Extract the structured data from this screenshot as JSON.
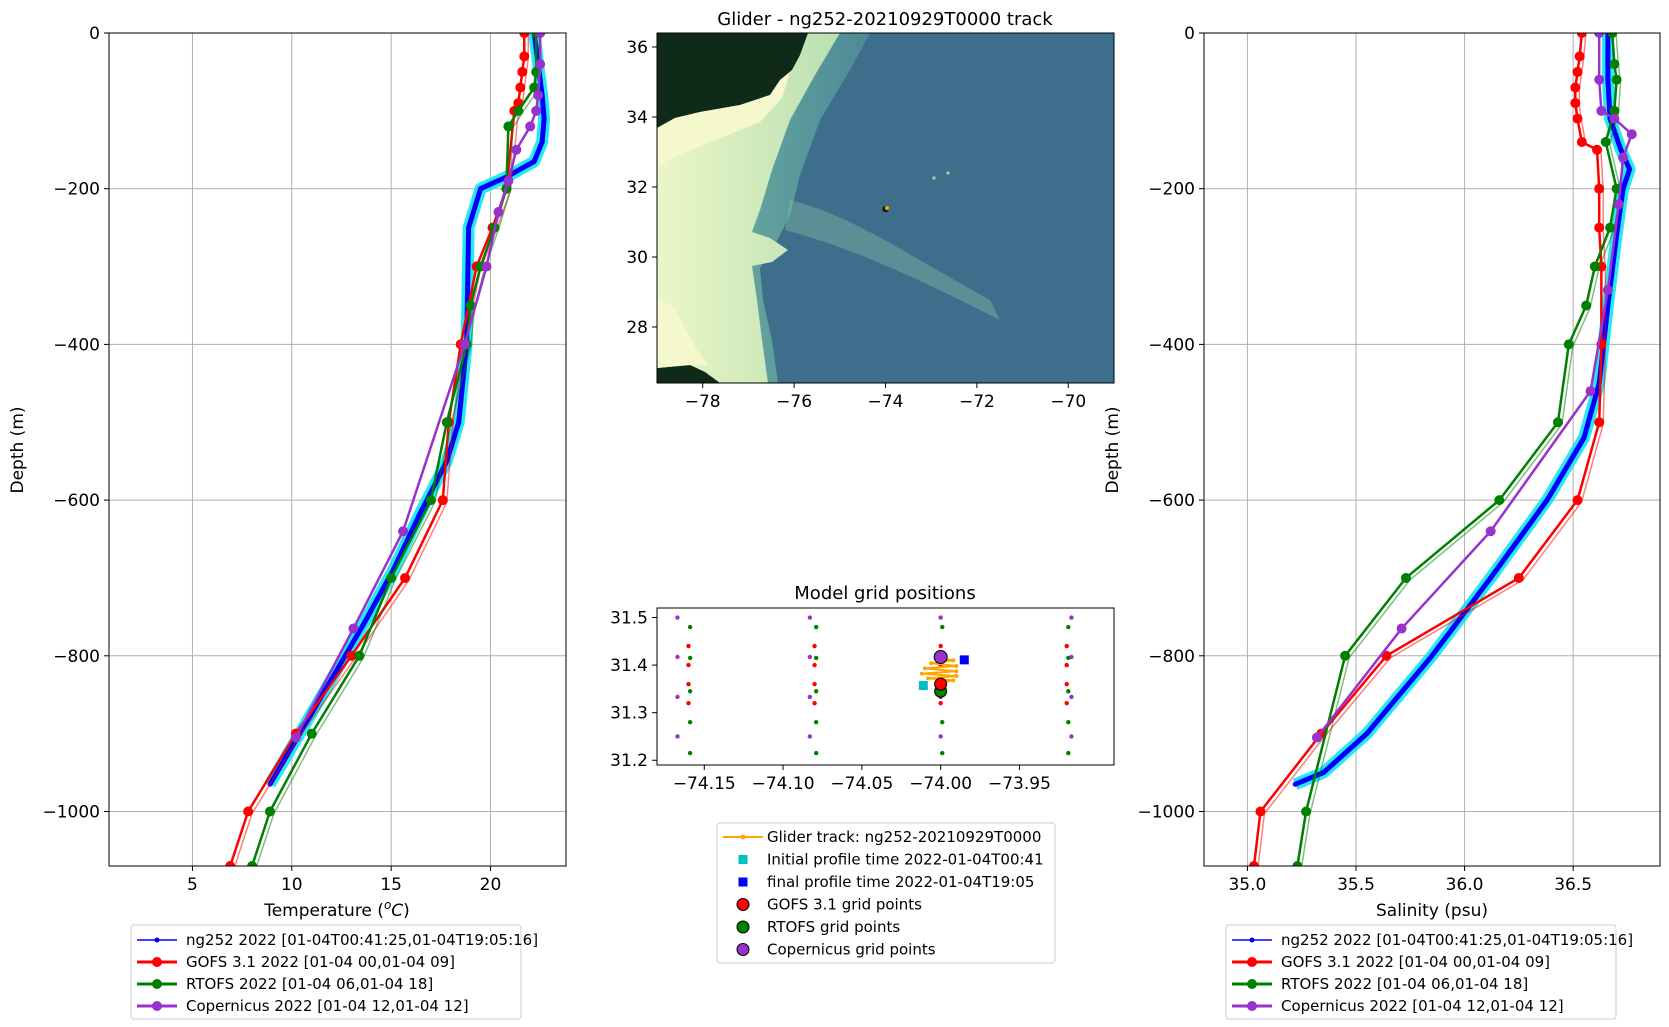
{
  "colors": {
    "glider": "#0000ff",
    "glider_envelope": "#00e5ee",
    "gofs": "#ff0000",
    "rtofs": "#008000",
    "copernicus": "#9932cc",
    "track": "#ffa500",
    "initial": "#00bfbf",
    "final": "#0000ff",
    "grid": "#b0b0b0",
    "deep_ocean": "#3d6e8c",
    "land": "#0f2a18"
  },
  "icons": {
    "glider_legend": "line-with-small-dot",
    "model_legend": "line-with-large-dot",
    "initial": "cyan-square",
    "final": "blue-square",
    "grid_points": "circle-marker"
  },
  "chart_data": [
    {
      "id": "temperature",
      "type": "line",
      "xlabel": "Temperature (°C)",
      "ylabel": "Depth (m)",
      "xlim": [
        0.8,
        23.8
      ],
      "ylim": [
        -1070,
        0
      ],
      "xticks": [
        5,
        10,
        15,
        20
      ],
      "yticks": [
        0,
        -200,
        -400,
        -600,
        -800,
        -1000
      ],
      "grid": true,
      "legend": "below",
      "series": [
        {
          "key": "glider",
          "name": "ng252 2022 [01-04T00:41:25,01-04T19:05:16]",
          "x": [
            22.2,
            22.4,
            22.6,
            22.7,
            22.6,
            22.2,
            20.8,
            19.5,
            18.9,
            18.8,
            18.4,
            17.8,
            16.4,
            15.1,
            13.6,
            12.0,
            10.4,
            8.9
          ],
          "y": [
            0,
            -40,
            -80,
            -110,
            -140,
            -165,
            -185,
            -200,
            -250,
            -400,
            -500,
            -550,
            -620,
            -690,
            -760,
            -830,
            -900,
            -965
          ]
        },
        {
          "key": "gofs",
          "name": "GOFS 3.1 2022 [01-04 00,01-04 09]",
          "x": [
            21.7,
            21.7,
            21.6,
            21.5,
            21.4,
            21.2,
            20.8,
            20.1,
            19.3,
            18.5,
            17.9,
            17.6,
            15.7,
            13.0,
            10.2,
            7.8,
            6.9
          ],
          "y": [
            0,
            -30,
            -50,
            -70,
            -90,
            -100,
            -200,
            -250,
            -300,
            -400,
            -500,
            -600,
            -700,
            -800,
            -900,
            -1000,
            -1070
          ]
        },
        {
          "key": "rtofs",
          "name": "RTOFS 2022 [01-04 06,01-04 18]",
          "x": [
            22.3,
            22.3,
            22.2,
            21.4,
            20.9,
            20.8,
            20.2,
            19.5,
            19.0,
            18.8,
            17.8,
            17.0,
            15.0,
            13.4,
            11.0,
            8.9,
            8.0
          ],
          "y": [
            0,
            -50,
            -70,
            -100,
            -120,
            -200,
            -250,
            -300,
            -350,
            -400,
            -500,
            -600,
            -700,
            -800,
            -900,
            -1000,
            -1070
          ]
        },
        {
          "key": "copernicus",
          "name": "Copernicus 2022 [01-04 12,01-04 12]",
          "x": [
            22.5,
            22.5,
            22.4,
            22.3,
            22.0,
            21.3,
            20.9,
            20.4,
            19.8,
            18.7,
            15.6,
            13.1,
            10.2
          ],
          "y": [
            0,
            -40,
            -80,
            -100,
            -120,
            -150,
            -190,
            -230,
            -300,
            -400,
            -640,
            -765,
            -905
          ]
        }
      ]
    },
    {
      "id": "salinity",
      "type": "line",
      "xlabel": "Salinity (psu)",
      "ylabel": "Depth (m)",
      "xlim": [
        34.8,
        36.9
      ],
      "ylim": [
        -1070,
        0
      ],
      "xticks": [
        35.0,
        35.5,
        36.0,
        36.5
      ],
      "yticks": [
        0,
        -200,
        -400,
        -600,
        -800,
        -1000
      ],
      "grid": true,
      "legend": "below",
      "series": [
        {
          "key": "glider",
          "name": "ng252 2022 [01-04T00:41:25,01-04T19:05:16]",
          "x": [
            36.66,
            36.66,
            36.67,
            36.72,
            36.76,
            36.73,
            36.7,
            36.66,
            36.62,
            36.55,
            36.38,
            36.12,
            35.85,
            35.55,
            35.35,
            35.22
          ],
          "y": [
            0,
            -60,
            -110,
            -150,
            -175,
            -200,
            -260,
            -350,
            -450,
            -520,
            -600,
            -700,
            -800,
            -900,
            -950,
            -965
          ]
        },
        {
          "key": "gofs",
          "name": "GOFS 3.1 2022 [01-04 00,01-04 09]",
          "x": [
            36.54,
            36.53,
            36.52,
            36.51,
            36.51,
            36.52,
            36.54,
            36.61,
            36.62,
            36.62,
            36.63,
            36.63,
            36.62,
            36.52,
            36.25,
            35.64,
            35.34,
            35.06,
            35.03
          ],
          "y": [
            0,
            -30,
            -50,
            -70,
            -90,
            -110,
            -140,
            -150,
            -200,
            -250,
            -300,
            -400,
            -500,
            -600,
            -700,
            -800,
            -900,
            -1000,
            -1070
          ]
        },
        {
          "key": "rtofs",
          "name": "RTOFS 2022 [01-04 06,01-04 18]",
          "x": [
            36.68,
            36.69,
            36.7,
            36.69,
            36.65,
            36.7,
            36.67,
            36.6,
            36.56,
            36.48,
            36.43,
            36.16,
            35.73,
            35.45,
            35.27,
            35.23
          ],
          "y": [
            0,
            -40,
            -60,
            -100,
            -140,
            -200,
            -250,
            -300,
            -350,
            -400,
            -500,
            -600,
            -700,
            -800,
            -1000,
            -1070
          ]
        },
        {
          "key": "copernicus",
          "name": "Copernicus 2022 [01-04 12,01-04 12]",
          "x": [
            36.62,
            36.62,
            36.63,
            36.69,
            36.77,
            36.73,
            36.71,
            36.66,
            36.58,
            36.12,
            35.71,
            35.32
          ],
          "y": [
            0,
            -60,
            -100,
            -110,
            -130,
            -160,
            -220,
            -330,
            -460,
            -640,
            -765,
            -905
          ]
        }
      ]
    },
    {
      "id": "track_map",
      "type": "map",
      "title": "Glider - ng252-20210929T0000 track",
      "xlim": [
        -79.0,
        -69.0
      ],
      "ylim": [
        26.4,
        36.4
      ],
      "xticks": [
        -78,
        -76,
        -74,
        -72,
        -70
      ],
      "yticks": [
        28,
        30,
        32,
        34,
        36
      ],
      "glider_position": {
        "lon": -74.0,
        "lat": 31.37
      }
    },
    {
      "id": "grid_positions",
      "type": "scatter",
      "title": "Model grid positions",
      "xlim": [
        -74.18,
        -73.89
      ],
      "ylim": [
        31.19,
        31.52
      ],
      "xticks": [
        -74.15,
        -74.1,
        -74.05,
        -74.0,
        -73.95
      ],
      "yticks": [
        31.2,
        31.3,
        31.4,
        31.5
      ],
      "xtick_labels": [
        "−74.15",
        "−74.10",
        "−74.05",
        "−74.00",
        "−73.95"
      ],
      "ytick_labels": [
        "31.2",
        "31.3",
        "31.4",
        "31.5"
      ],
      "gofs_lons": [
        -74.16,
        -74.08,
        -74.0,
        -73.92
      ],
      "gofs_lats": [
        31.32,
        31.36,
        31.4,
        31.44
      ],
      "rtofs_lons": [
        -74.159,
        -74.079,
        -73.999,
        -73.919
      ],
      "rtofs_lats": [
        31.215,
        31.28,
        31.345,
        31.415,
        31.48
      ],
      "cop_lons": [
        -74.167,
        -74.083,
        -74.0,
        -73.917
      ],
      "cop_lats": [
        31.25,
        31.333,
        31.417,
        31.5
      ],
      "track": [
        [
          -74.0,
          31.414
        ],
        [
          -73.992,
          31.41
        ],
        [
          -74.006,
          31.404
        ],
        [
          -73.99,
          31.398
        ],
        [
          -74.01,
          31.393
        ],
        [
          -73.99,
          31.387
        ],
        [
          -74.012,
          31.382
        ],
        [
          -73.99,
          31.377
        ],
        [
          -74.008,
          31.372
        ],
        [
          -73.992,
          31.368
        ],
        [
          -74.0,
          31.363
        ],
        [
          -74.0,
          31.355
        ]
      ],
      "initial": {
        "lon": -74.011,
        "lat": 31.357
      },
      "final": {
        "lon": -73.985,
        "lat": 31.411
      },
      "gofs_highlight": {
        "lon": -74.0,
        "lat": 31.36
      },
      "rtofs_highlight": {
        "lon": -74.0,
        "lat": 31.345
      },
      "cop_highlight": {
        "lon": -74.0,
        "lat": 31.417
      },
      "legend": [
        {
          "key": "track",
          "label": "Glider track: ng252-20210929T0000"
        },
        {
          "key": "initial",
          "label": "Initial profile time 2022-01-04T00:41"
        },
        {
          "key": "final",
          "label": "final profile time 2022-01-04T19:05"
        },
        {
          "key": "gofs",
          "label": "GOFS 3.1 grid points"
        },
        {
          "key": "rtofs",
          "label": "RTOFS grid points"
        },
        {
          "key": "copernicus",
          "label": "Copernicus grid points"
        }
      ]
    }
  ]
}
